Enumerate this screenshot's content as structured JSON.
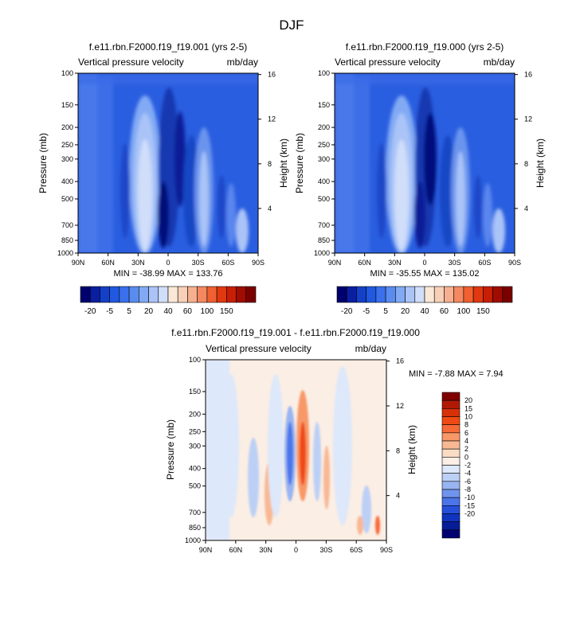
{
  "page": {
    "title": "DJF"
  },
  "colors": {
    "ink": "#000000",
    "bg": "#ffffff",
    "fill_cool_light": "#d7e6fb",
    "fill_warm_light": "#fbe6d8"
  },
  "chart_data": [
    {
      "type": "heatmap",
      "title": "f.e11.rbn.F2000.f19_f19.001 (yrs 2-5)",
      "left_label": "Vertical pressure velocity",
      "right_label": "mb/day",
      "ylabel": "Pressure (mb)",
      "ylabel_right": "Height (km)",
      "x_ticks": [
        "90N",
        "60N",
        "30N",
        "0",
        "30S",
        "60S",
        "90S"
      ],
      "y_ticks": [
        "100",
        "150",
        "200",
        "250",
        "300",
        "400",
        "500",
        "700",
        "850",
        "1000"
      ],
      "y_ticks_right": [
        "16",
        "12",
        "8",
        "4"
      ],
      "minmax_text": "MIN = -38.99  MAX = 133.76",
      "min": -38.99,
      "max": 133.76,
      "colorbar_labels": [
        "-20",
        "-5",
        "5",
        "20",
        "40",
        "60",
        "100",
        "150"
      ],
      "colorbar_colors": [
        "#00006e",
        "#0a1ea0",
        "#1440c8",
        "#2058e0",
        "#3a70ec",
        "#5a8cf0",
        "#82aaf4",
        "#aac4f8",
        "#d0defa",
        "#fae8d6",
        "#f8d0b8",
        "#f6b090",
        "#f48860",
        "#f06030",
        "#e03810",
        "#c81e06",
        "#a00c02",
        "#7a0000"
      ]
    },
    {
      "type": "heatmap",
      "title": "f.e11.rbn.F2000.f19_f19.000 (yrs 2-5)",
      "left_label": "Vertical pressure velocity",
      "right_label": "mb/day",
      "ylabel": "Pressure (mb)",
      "ylabel_right": "Height (km)",
      "x_ticks": [
        "90N",
        "60N",
        "30N",
        "0",
        "30S",
        "60S",
        "90S"
      ],
      "y_ticks": [
        "100",
        "150",
        "200",
        "250",
        "300",
        "400",
        "500",
        "700",
        "850",
        "1000"
      ],
      "y_ticks_right": [
        "16",
        "12",
        "8",
        "4"
      ],
      "minmax_text": "MIN = -35.55  MAX = 135.02",
      "min": -35.55,
      "max": 135.02,
      "colorbar_labels": [
        "-20",
        "-5",
        "5",
        "20",
        "40",
        "60",
        "100",
        "150"
      ],
      "colorbar_colors": [
        "#00006e",
        "#0a1ea0",
        "#1440c8",
        "#2058e0",
        "#3a70ec",
        "#5a8cf0",
        "#82aaf4",
        "#aac4f8",
        "#d0defa",
        "#fae8d6",
        "#f8d0b8",
        "#f6b090",
        "#f48860",
        "#f06030",
        "#e03810",
        "#c81e06",
        "#a00c02",
        "#7a0000"
      ]
    },
    {
      "type": "heatmap",
      "title": "f.e11.rbn.F2000.f19_f19.001 - f.e11.rbn.F2000.f19_f19.000",
      "left_label": "Vertical pressure velocity",
      "right_label": "mb/day",
      "ylabel": "Pressure (mb)",
      "ylabel_right": "Height (km)",
      "x_ticks": [
        "90N",
        "60N",
        "30N",
        "0",
        "30S",
        "60S",
        "90S"
      ],
      "y_ticks": [
        "100",
        "150",
        "200",
        "250",
        "300",
        "400",
        "500",
        "700",
        "850",
        "1000"
      ],
      "y_ticks_right": [
        "16",
        "12",
        "8",
        "4"
      ],
      "minmax_text": "MIN =  -7.88  MAX =  7.94",
      "min": -7.88,
      "max": 7.94,
      "colorbar_labels": [
        "20",
        "15",
        "10",
        "8",
        "6",
        "4",
        "2",
        "0",
        "-2",
        "-4",
        "-6",
        "-8",
        "-10",
        "-15",
        "-20"
      ],
      "colorbar_colors": [
        "#800000",
        "#b01a04",
        "#d83008",
        "#f04a14",
        "#f66a38",
        "#f89868",
        "#f8b894",
        "#fadcc4",
        "#fbeee4",
        "#dde8fa",
        "#bcd0f6",
        "#98b4f2",
        "#7094ee",
        "#4c74ea",
        "#2650dc",
        "#1034c0",
        "#061c98",
        "#000070"
      ]
    }
  ]
}
